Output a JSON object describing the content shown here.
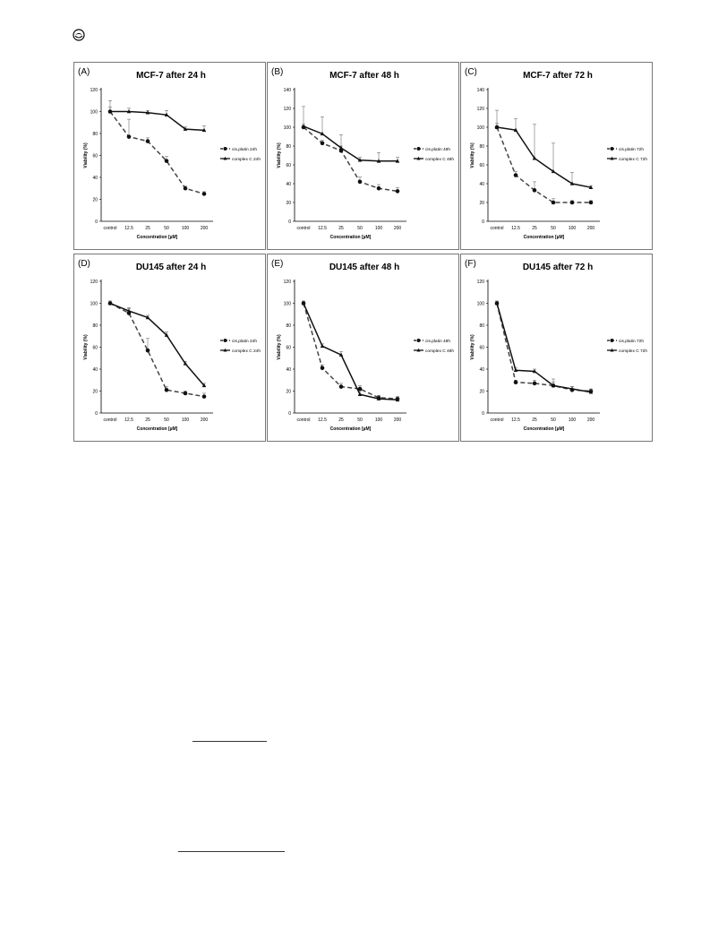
{
  "chart_data": [
    {
      "type": "line",
      "panel_label": "(A)",
      "title": "MCF-7 after 24 h",
      "xlabel": "Concentration [µM]",
      "ylabel": "Viability (%)",
      "categories": [
        "control",
        "12.5",
        "25",
        "50",
        "100",
        "200"
      ],
      "ylim": [
        0,
        120
      ],
      "yticks": [
        "0",
        "20",
        "40",
        "60",
        "80",
        "100",
        "120"
      ],
      "legend_position": "right",
      "series": [
        {
          "name": "cis.platin 24h",
          "style": "dashed",
          "marker": "circle",
          "values": [
            100,
            77,
            73,
            55,
            30,
            25
          ],
          "errors": [
            10,
            16,
            3,
            4,
            2,
            2
          ]
        },
        {
          "name": "complex C 24h",
          "style": "solid",
          "marker": "triangle",
          "values": [
            100,
            100,
            99,
            97,
            84,
            83
          ],
          "errors": [
            4,
            3,
            2,
            4,
            2,
            4
          ]
        }
      ]
    },
    {
      "type": "line",
      "panel_label": "(B)",
      "title": "MCF-7 after 48 h",
      "xlabel": "Concentration [µM]",
      "ylabel": "Viability (%)",
      "categories": [
        "control",
        "12.5",
        "25",
        "50",
        "100",
        "200"
      ],
      "ylim": [
        0,
        140
      ],
      "yticks": [
        "0",
        "20",
        "40",
        "60",
        "80",
        "100",
        "120",
        "140"
      ],
      "legend_position": "right",
      "series": [
        {
          "name": "cis.platin 48h",
          "style": "dashed",
          "marker": "circle",
          "values": [
            100,
            83,
            75,
            42,
            35,
            32
          ],
          "errors": [
            3,
            3,
            5,
            5,
            4,
            4
          ]
        },
        {
          "name": "complex C 48h",
          "style": "solid",
          "marker": "triangle",
          "values": [
            101,
            93,
            78,
            65,
            64,
            64
          ],
          "errors": [
            21,
            18,
            14,
            3,
            9,
            4
          ]
        }
      ]
    },
    {
      "type": "line",
      "panel_label": "(C)",
      "title": "MCF-7 after 72 h",
      "xlabel": "Concentration [µM]",
      "ylabel": "Viability (%)",
      "categories": [
        "control",
        "12.5",
        "25",
        "50",
        "100",
        "200"
      ],
      "ylim": [
        0,
        140
      ],
      "yticks": [
        "0",
        "20",
        "40",
        "60",
        "80",
        "100",
        "120",
        "140"
      ],
      "legend_position": "right",
      "series": [
        {
          "name": "cis.platin 72h",
          "style": "dashed",
          "marker": "circle",
          "values": [
            100,
            49,
            33,
            20,
            20,
            20
          ],
          "errors": [
            4,
            4,
            9,
            4,
            2,
            2
          ]
        },
        {
          "name": "complex C 72h",
          "style": "solid",
          "marker": "triangle",
          "values": [
            100,
            97,
            67,
            53,
            40,
            36
          ],
          "errors": [
            18,
            12,
            36,
            30,
            12,
            2
          ]
        }
      ]
    },
    {
      "type": "line",
      "panel_label": "(D)",
      "title": "DU145 after 24 h",
      "xlabel": "Concentration [µM]",
      "ylabel": "Viability (%)",
      "categories": [
        "control",
        "12.5",
        "25",
        "50",
        "100",
        "200"
      ],
      "ylim": [
        0,
        120
      ],
      "yticks": [
        "0",
        "20",
        "40",
        "60",
        "80",
        "100",
        "120"
      ],
      "legend_position": "right",
      "series": [
        {
          "name": "cis.platin 24h",
          "style": "dashed",
          "marker": "circle",
          "values": [
            100,
            91,
            57,
            21,
            18,
            15
          ],
          "errors": [
            2,
            4,
            11,
            3,
            2,
            3
          ]
        },
        {
          "name": "complex C 24h",
          "style": "solid",
          "marker": "triangle",
          "values": [
            100,
            93,
            87,
            71,
            45,
            25
          ],
          "errors": [
            2,
            3,
            2,
            3,
            2,
            2
          ]
        }
      ]
    },
    {
      "type": "line",
      "panel_label": "(E)",
      "title": "DU145 after 48 h",
      "xlabel": "Concentration [µM]",
      "ylabel": "Viability (%)",
      "categories": [
        "control",
        "12.5",
        "25",
        "50",
        "100",
        "200"
      ],
      "ylim": [
        0,
        120
      ],
      "yticks": [
        "0",
        "20",
        "40",
        "60",
        "80",
        "100",
        "120"
      ],
      "legend_position": "right",
      "series": [
        {
          "name": "cis.platin 48h",
          "style": "dashed",
          "marker": "circle",
          "values": [
            100,
            41,
            24,
            22,
            14,
            13
          ],
          "errors": [
            2,
            3,
            3,
            3,
            2,
            2
          ]
        },
        {
          "name": "complex C 48h",
          "style": "solid",
          "marker": "triangle",
          "values": [
            100,
            61,
            53,
            17,
            13,
            12
          ],
          "errors": [
            2,
            2,
            3,
            3,
            2,
            2
          ]
        }
      ]
    },
    {
      "type": "line",
      "panel_label": "(F)",
      "title": "DU145 after 72 h",
      "xlabel": "Concentration [µM]",
      "ylabel": "Viability (%)",
      "categories": [
        "control",
        "12.5",
        "25",
        "50",
        "100",
        "200"
      ],
      "ylim": [
        0,
        120
      ],
      "yticks": [
        "0",
        "20",
        "40",
        "60",
        "80",
        "100",
        "120"
      ],
      "legend_position": "right",
      "series": [
        {
          "name": "cis.platin 72h",
          "style": "dashed",
          "marker": "circle",
          "values": [
            100,
            28,
            27,
            25,
            21,
            20
          ],
          "errors": [
            2,
            2,
            3,
            6,
            3,
            2
          ]
        },
        {
          "name": "complex C 72h",
          "style": "solid",
          "marker": "triangle",
          "values": [
            100,
            39,
            38,
            25,
            22,
            19
          ],
          "errors": [
            2,
            2,
            2,
            3,
            2,
            2
          ]
        }
      ]
    }
  ]
}
